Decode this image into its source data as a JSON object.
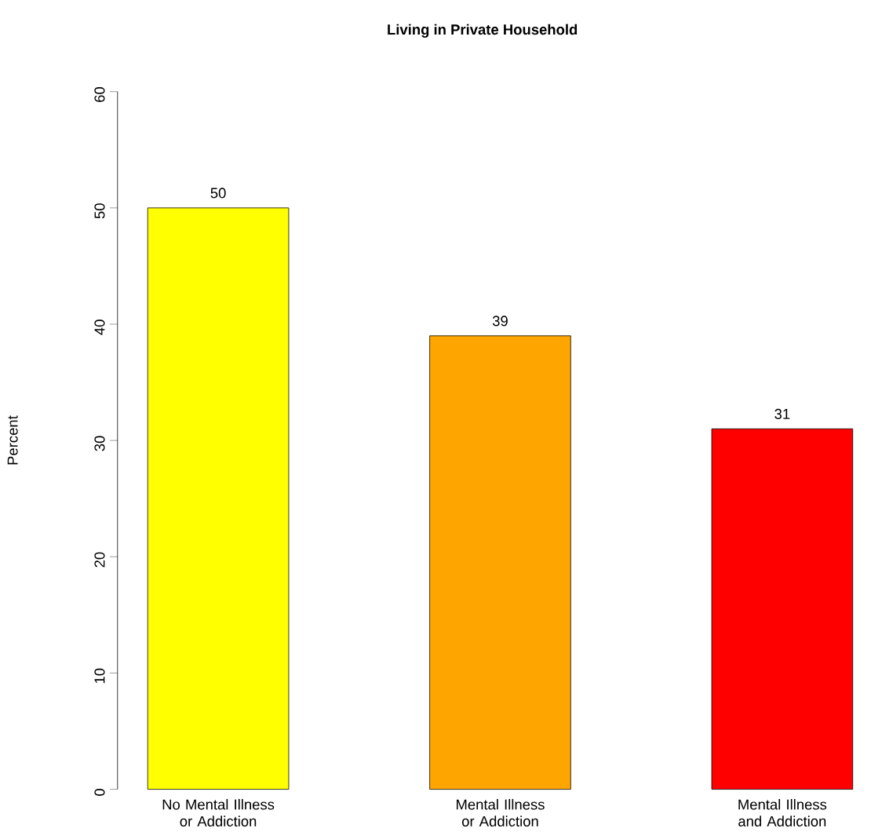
{
  "chart_data": {
    "type": "bar",
    "title": "Living in Private Household",
    "ylabel": "Percent",
    "categories": [
      "No Mental Illness or Addiction",
      "Mental Illness or Addiction",
      "Mental Illness and Addiction"
    ],
    "values": [
      50,
      39,
      31
    ],
    "colors": [
      "#ffff00",
      "#ffa500",
      "#ff0000"
    ],
    "ylim": [
      0,
      60
    ],
    "yticks": [
      0,
      10,
      20,
      30,
      40,
      50,
      60
    ],
    "data_labels": true
  }
}
